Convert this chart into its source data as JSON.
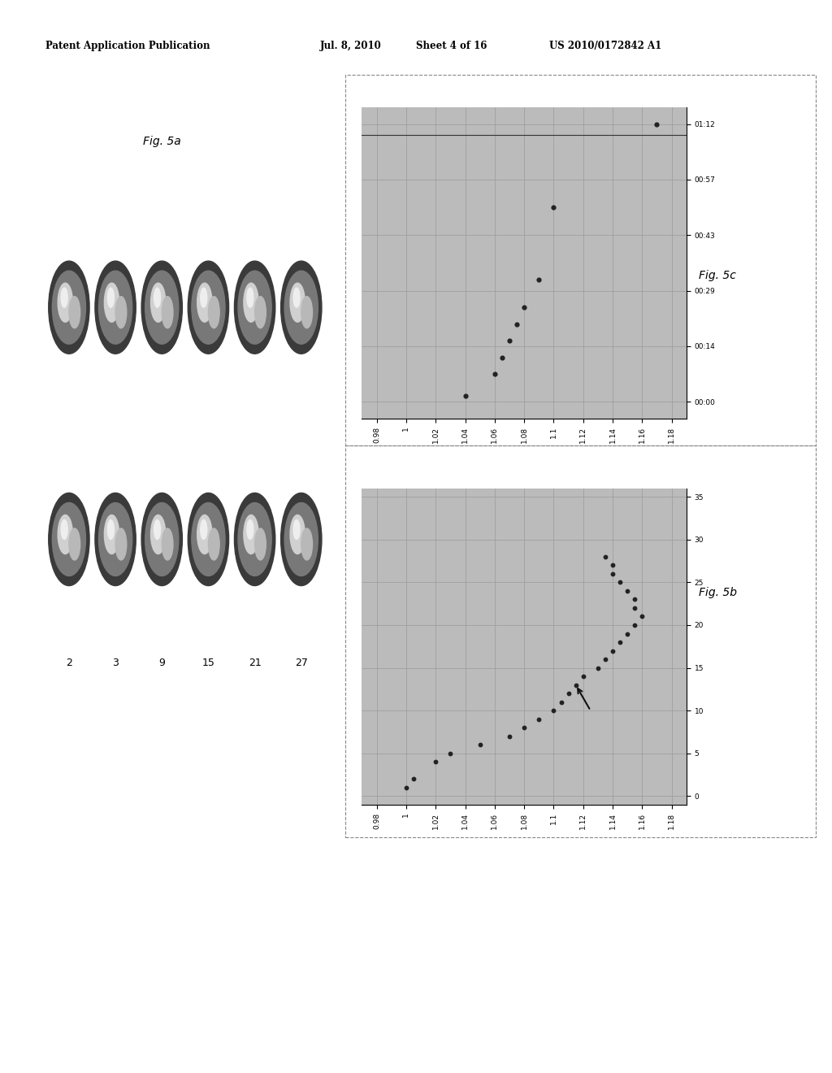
{
  "header_left": "Patent Application Publication",
  "header_mid": "Jul. 8, 2010",
  "header_mid2": "Sheet 4 of 16",
  "header_right": "US 2010/0172842 A1",
  "fig5a_label": "Fig. 5a",
  "fig5b_label": "Fig. 5b",
  "fig5c_label": "Fig. 5c",
  "fig5a_xticks": [
    "2",
    "3",
    "9",
    "15",
    "21",
    "27"
  ],
  "fig5b_x_labels": [
    "0",
    "5",
    "10",
    "15",
    "20",
    "25",
    "30",
    "35"
  ],
  "fig5b_x_vals": [
    0,
    5,
    10,
    15,
    20,
    25,
    30,
    35
  ],
  "fig5b_y_labels": [
    "0.98",
    "1",
    "1.02",
    "1.04",
    "1.06",
    "1.08",
    "1.1",
    "1.12",
    "1.14",
    "1.16",
    "1.18"
  ],
  "fig5b_y_vals": [
    0.98,
    1.0,
    1.02,
    1.04,
    1.06,
    1.08,
    1.1,
    1.12,
    1.14,
    1.16,
    1.18
  ],
  "fig5b_data_x": [
    1,
    2,
    4,
    5,
    6,
    7,
    8,
    9,
    10,
    11,
    12,
    13,
    14,
    15,
    16,
    17,
    18,
    19,
    20,
    21,
    22,
    23,
    24,
    25,
    26,
    27,
    28
  ],
  "fig5b_data_y": [
    1.0,
    1.005,
    1.02,
    1.03,
    1.05,
    1.07,
    1.08,
    1.09,
    1.1,
    1.105,
    1.11,
    1.115,
    1.12,
    1.13,
    1.135,
    1.14,
    1.145,
    1.15,
    1.155,
    1.16,
    1.155,
    1.155,
    1.15,
    1.145,
    1.14,
    1.14,
    1.135
  ],
  "fig5c_x_labels": [
    "00:00",
    "00:14",
    "00:29",
    "00:43",
    "00:57",
    "01:12"
  ],
  "fig5c_x_vals": [
    0,
    1,
    2,
    3,
    4,
    5
  ],
  "fig5c_y_labels": [
    "0.98",
    "1",
    "1.02",
    "1.04",
    "1.06",
    "1.08",
    "1.1",
    "1.12",
    "1.14",
    "1.16",
    "1.18"
  ],
  "fig5c_y_vals": [
    0.98,
    1.0,
    1.02,
    1.04,
    1.06,
    1.08,
    1.1,
    1.12,
    1.14,
    1.16,
    1.18
  ],
  "fig5c_data_x": [
    0.1,
    0.5,
    0.8,
    1.1,
    1.4,
    1.7,
    2.2,
    3.5,
    5.0
  ],
  "fig5c_data_y": [
    1.04,
    1.06,
    1.065,
    1.07,
    1.075,
    1.08,
    1.09,
    1.1,
    1.17
  ],
  "bg_color": "#bbbbbb",
  "dot_color": "#222222",
  "arrow_color": "#111111",
  "grid_color": "#888888",
  "border_dot_color": "#777777"
}
